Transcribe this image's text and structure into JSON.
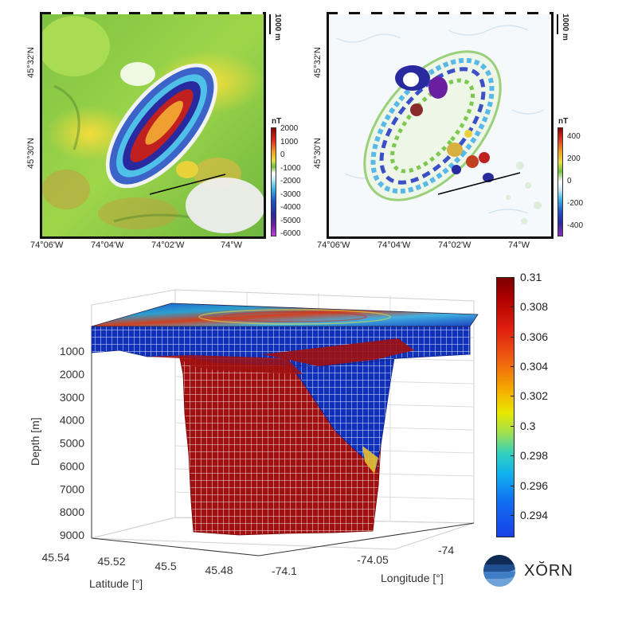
{
  "panels": {
    "tmi": {
      "unit": "nT",
      "scale": "1000 m",
      "x_ticks": [
        "74°06'W",
        "74°04'W",
        "74°02'W",
        "74°W"
      ],
      "y_ticks": [
        "45°32'N",
        "45°30'N"
      ],
      "colorbar_ticks": [
        "2000",
        "1000",
        "0",
        "-1000",
        "-2000",
        "-3000",
        "-4000",
        "-5000",
        "-6000"
      ]
    },
    "filtered": {
      "unit": "nT",
      "scale": "1000 m",
      "x_ticks": [
        "74°06'W",
        "74°04'W",
        "74°02'W",
        "74°W"
      ],
      "y_ticks": [
        "45°32'N",
        "45°30'N"
      ],
      "colorbar_ticks": [
        "400",
        "200",
        "0",
        "-200",
        "-400"
      ]
    }
  },
  "chart_data": {
    "type": "3d-voxel",
    "xlabel": "Latitude [°]",
    "ylabel": "Longitude [°]",
    "zlabel": "Depth [m]",
    "depth_ticks": [
      1000,
      2000,
      3000,
      4000,
      5000,
      6000,
      7000,
      8000,
      9000
    ],
    "lat_ticks": [
      "45.54",
      "45.52",
      "45.5",
      "45.48"
    ],
    "lon_ticks": [
      "-74.1",
      "-74.05",
      "-74"
    ],
    "colorbar_ticks": [
      "0.31",
      "0.308",
      "0.306",
      "0.304",
      "0.302",
      "0.3",
      "0.298",
      "0.296",
      "0.294"
    ],
    "colorbar_range": [
      0.2925,
      0.31
    ]
  },
  "logo": {
    "text": "XŎRN"
  },
  "colors": {
    "jet_low": "#0000a0",
    "jet_high": "#800000",
    "grid": "#d9d9d9"
  }
}
